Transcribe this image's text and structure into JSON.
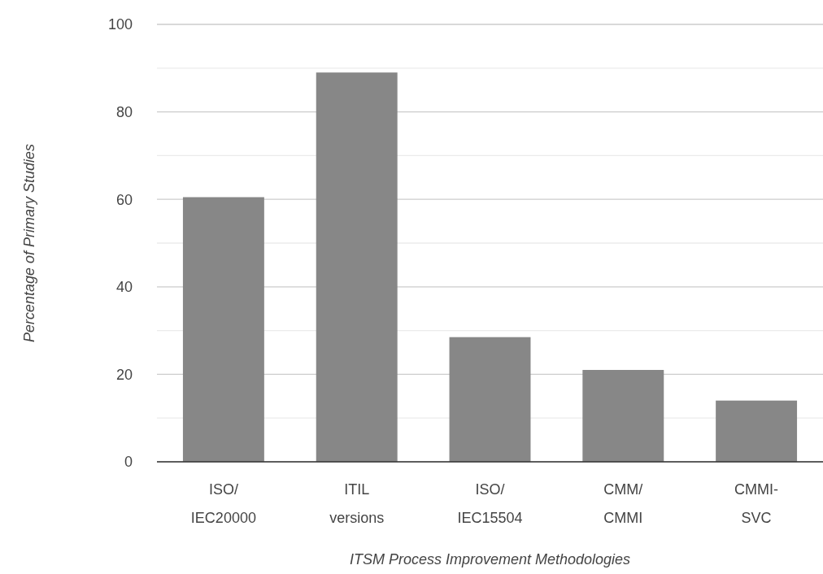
{
  "chart_data": {
    "type": "bar",
    "xlabel": "ITSM Process Improvement Methodologies",
    "ylabel": "Percentage of Primary Studies",
    "categories": [
      "ISO/\nIEC20000",
      "ITIL\nversions",
      "ISO/\nIEC15504",
      "CMM/\nCMMI",
      "CMMI-\nSVC"
    ],
    "values": [
      60.5,
      89,
      28.5,
      21,
      14
    ],
    "color": "#878787",
    "ylim": [
      0,
      100
    ],
    "yticks": [
      0,
      {
        "value": 10,
        "label": null
      },
      20,
      {
        "value": 30,
        "label": null
      },
      40,
      {
        "value": 50,
        "label": null
      },
      60,
      {
        "value": 70,
        "label": null
      },
      80,
      {
        "value": 90,
        "label": null
      },
      100
    ],
    "grid": "y"
  }
}
